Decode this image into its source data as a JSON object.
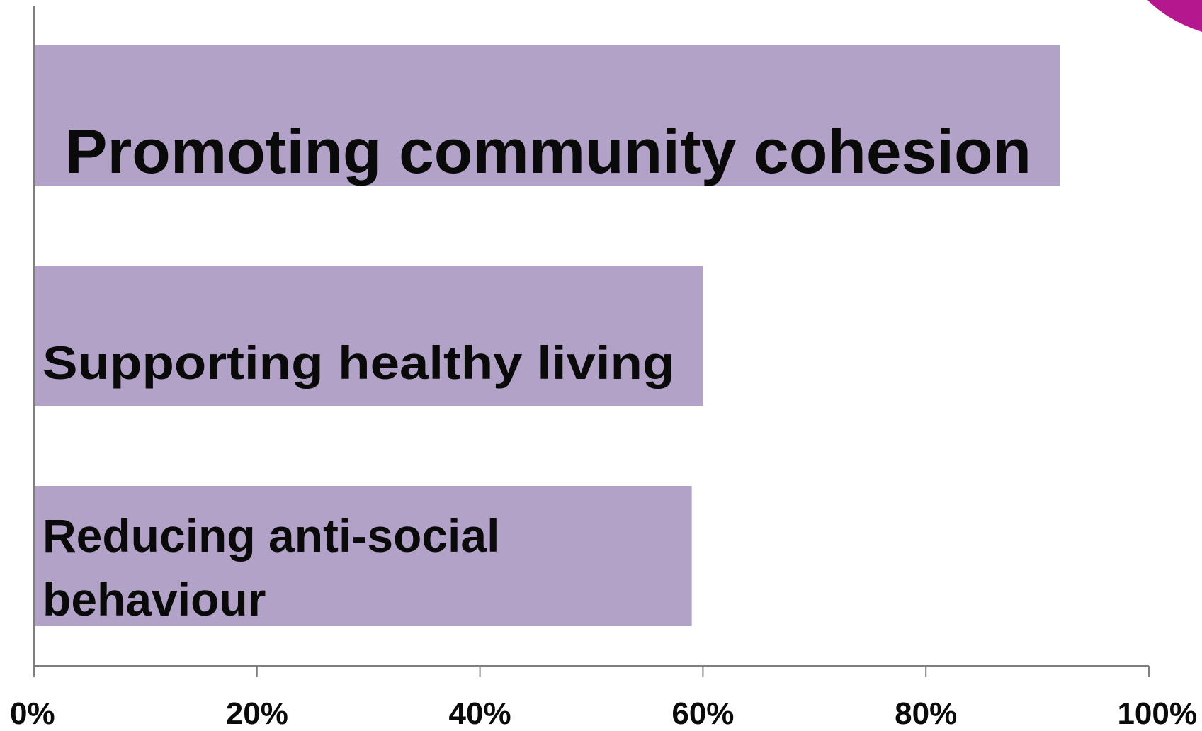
{
  "chart_data": {
    "type": "bar",
    "orientation": "horizontal",
    "categories": [
      "Promoting community cohesion",
      "Supporting healthy living",
      "Reducing anti-social behaviour"
    ],
    "values": [
      92,
      60,
      59
    ],
    "value_unit": "%",
    "xlim": [
      0,
      100
    ],
    "xticks": [
      "0%",
      "20%",
      "40%",
      "60%",
      "80%",
      "100%"
    ],
    "title": "",
    "xlabel": "",
    "ylabel": "",
    "grid": false,
    "legend": "none",
    "bar_labels_inside": true
  },
  "colors": {
    "bar": "#b2a2c8",
    "axis": "#7f7f7f",
    "text": "#0a0a0a",
    "corner_accent": "#b5178f"
  }
}
